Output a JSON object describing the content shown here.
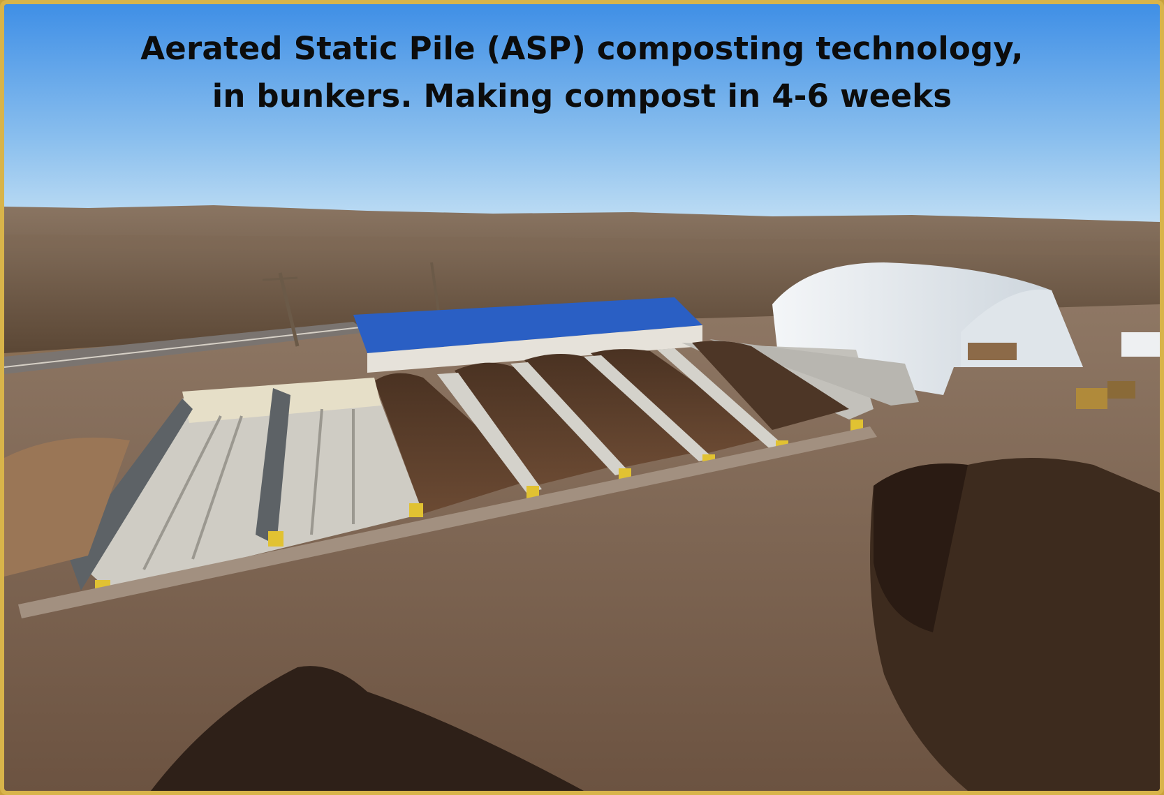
{
  "caption": {
    "line1": "Aerated Static Pile (ASP) composting technology,",
    "line2": "in bunkers. Making compost in 4-6 weeks"
  },
  "colors": {
    "sky_top": "#3f8fe6",
    "sky_bottom": "#c7e2f5",
    "tree_line": "#6e5a45",
    "blue_roof": "#2a5fc4",
    "white_dome": "#eef2f6",
    "concrete": "#c9c7c0",
    "compost": "#5a3f2b",
    "ground": "#7c6350",
    "frame": "#d8b44a"
  },
  "scene": {
    "description_icon": "composting-facility-photo"
  }
}
